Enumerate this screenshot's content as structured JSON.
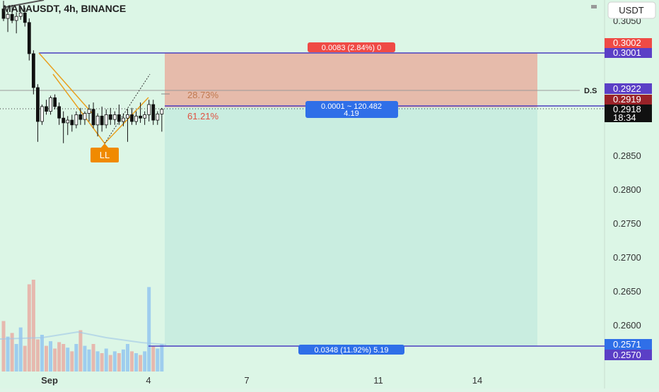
{
  "header": {
    "title": "MANAUSDT, 4h, BINANCE",
    "currency": "USDT"
  },
  "chart_data": {
    "type": "candlestick",
    "symbol": "MANAUSDT",
    "interval": "4h",
    "exchange": "BINANCE",
    "y_axis": {
      "ticks": [
        "0.3050",
        "0.2850",
        "0.2800",
        "0.2750",
        "0.2700",
        "0.2650",
        "0.2600"
      ]
    },
    "x_axis": {
      "ticks": [
        "Sep",
        "4",
        "7",
        "11",
        "14"
      ]
    },
    "price_labels": {
      "target": "0.3002",
      "upper_line": "0.3001",
      "ds": "0.2922",
      "entry": "0.2919",
      "last_price": "0.2918",
      "countdown": "18:34",
      "stop_top": "0.2571",
      "stop_bottom": "0.2570"
    },
    "annotations": {
      "profit_label": "0.0083 (2.84%) 0",
      "entry_label_line1": "0.0001 ~ 120.482",
      "entry_label_line2": "4.19",
      "stop_label": "0.0348 (11.92%) 5.19",
      "fib_upper": "28.73%",
      "fib_lower": "61.21%",
      "ds_label": "D.S",
      "ll_label": "LL"
    },
    "candles": [
      {
        "o": 0.3066,
        "h": 0.3078,
        "l": 0.3048,
        "c": 0.3052
      },
      {
        "o": 0.3052,
        "h": 0.3062,
        "l": 0.3032,
        "c": 0.3058
      },
      {
        "o": 0.3058,
        "h": 0.3072,
        "l": 0.3045,
        "c": 0.3049
      },
      {
        "o": 0.3049,
        "h": 0.3061,
        "l": 0.303,
        "c": 0.3055
      },
      {
        "o": 0.3055,
        "h": 0.307,
        "l": 0.305,
        "c": 0.306
      },
      {
        "o": 0.306,
        "h": 0.3068,
        "l": 0.304,
        "c": 0.3046
      },
      {
        "o": 0.3046,
        "h": 0.3052,
        "l": 0.299,
        "c": 0.3
      },
      {
        "o": 0.3,
        "h": 0.3005,
        "l": 0.294,
        "c": 0.295
      },
      {
        "o": 0.295,
        "h": 0.2955,
        "l": 0.287,
        "c": 0.29
      },
      {
        "o": 0.29,
        "h": 0.2925,
        "l": 0.2895,
        "c": 0.2922
      },
      {
        "o": 0.2922,
        "h": 0.2932,
        "l": 0.291,
        "c": 0.2915
      },
      {
        "o": 0.2915,
        "h": 0.2938,
        "l": 0.291,
        "c": 0.2935
      },
      {
        "o": 0.2935,
        "h": 0.294,
        "l": 0.2918,
        "c": 0.2922
      },
      {
        "o": 0.2922,
        "h": 0.2928,
        "l": 0.2895,
        "c": 0.2905
      },
      {
        "o": 0.2905,
        "h": 0.2915,
        "l": 0.2868,
        "c": 0.2898
      },
      {
        "o": 0.2898,
        "h": 0.2908,
        "l": 0.288,
        "c": 0.2902
      },
      {
        "o": 0.2902,
        "h": 0.291,
        "l": 0.2885,
        "c": 0.2895
      },
      {
        "o": 0.2895,
        "h": 0.2915,
        "l": 0.289,
        "c": 0.291
      },
      {
        "o": 0.291,
        "h": 0.292,
        "l": 0.2895,
        "c": 0.2903
      },
      {
        "o": 0.2903,
        "h": 0.2915,
        "l": 0.2895,
        "c": 0.2912
      },
      {
        "o": 0.2912,
        "h": 0.2925,
        "l": 0.29,
        "c": 0.2918
      },
      {
        "o": 0.2918,
        "h": 0.2928,
        "l": 0.289,
        "c": 0.2895
      },
      {
        "o": 0.2895,
        "h": 0.2912,
        "l": 0.2878,
        "c": 0.2908
      },
      {
        "o": 0.2908,
        "h": 0.2922,
        "l": 0.2885,
        "c": 0.2895
      },
      {
        "o": 0.2895,
        "h": 0.2918,
        "l": 0.289,
        "c": 0.291
      },
      {
        "o": 0.291,
        "h": 0.292,
        "l": 0.2895,
        "c": 0.2903
      },
      {
        "o": 0.2903,
        "h": 0.2915,
        "l": 0.2895,
        "c": 0.291
      },
      {
        "o": 0.291,
        "h": 0.2925,
        "l": 0.2895,
        "c": 0.29
      },
      {
        "o": 0.29,
        "h": 0.2912,
        "l": 0.2893,
        "c": 0.2905
      },
      {
        "o": 0.2905,
        "h": 0.2918,
        "l": 0.287,
        "c": 0.291
      },
      {
        "o": 0.291,
        "h": 0.292,
        "l": 0.2895,
        "c": 0.29
      },
      {
        "o": 0.29,
        "h": 0.2915,
        "l": 0.2895,
        "c": 0.2908
      },
      {
        "o": 0.2908,
        "h": 0.2928,
        "l": 0.2898,
        "c": 0.2905
      },
      {
        "o": 0.2905,
        "h": 0.2915,
        "l": 0.2895,
        "c": 0.291
      },
      {
        "o": 0.291,
        "h": 0.2932,
        "l": 0.29,
        "c": 0.2925
      },
      {
        "o": 0.2925,
        "h": 0.2932,
        "l": 0.2895,
        "c": 0.2902
      },
      {
        "o": 0.2902,
        "h": 0.2915,
        "l": 0.2895,
        "c": 0.2911
      },
      {
        "o": 0.2911,
        "h": 0.292,
        "l": 0.2885,
        "c": 0.2918
      }
    ],
    "volumes": [
      0.55,
      0.38,
      0.42,
      0.3,
      0.48,
      0.28,
      0.95,
      1.0,
      0.35,
      0.4,
      0.28,
      0.33,
      0.25,
      0.32,
      0.3,
      0.26,
      0.22,
      0.3,
      0.45,
      0.28,
      0.24,
      0.3,
      0.22,
      0.2,
      0.25,
      0.18,
      0.22,
      0.2,
      0.24,
      0.3,
      0.22,
      0.2,
      0.18,
      0.22,
      0.92,
      0.28,
      0.25,
      0.3
    ]
  }
}
